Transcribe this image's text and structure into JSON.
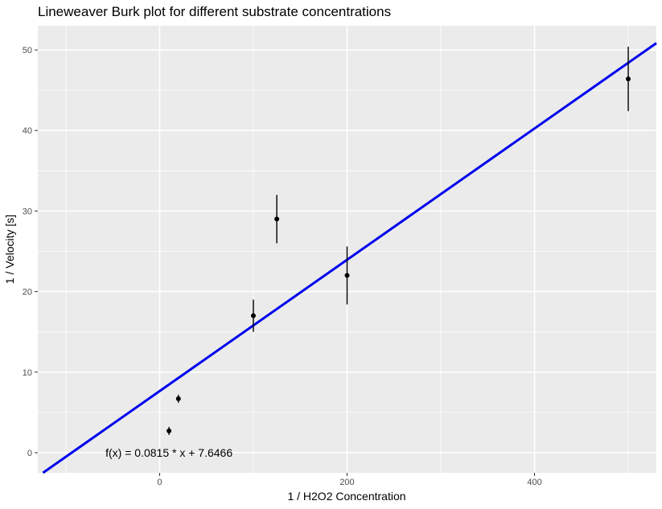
{
  "chart_data": {
    "type": "scatter",
    "title": "Lineweaver Burk plot for different substrate concentrations",
    "xlabel": "1 / H2O2 Concentration",
    "ylabel": "1 / Velocity [s]",
    "xlim": [
      -130,
      530
    ],
    "ylim": [
      -2.5,
      53
    ],
    "x_ticks": [
      0,
      200,
      400
    ],
    "x_minor_ticks": [
      -100,
      100,
      300,
      500
    ],
    "y_ticks": [
      0,
      10,
      20,
      30,
      40,
      50
    ],
    "y_minor_ticks": [
      5,
      15,
      25,
      35,
      45
    ],
    "grid": true,
    "points": [
      {
        "x": 10,
        "y": 2.7,
        "ymin": 2.2,
        "ymax": 3.2
      },
      {
        "x": 20,
        "y": 6.7,
        "ymin": 6.2,
        "ymax": 7.2
      },
      {
        "x": 100,
        "y": 17.0,
        "ymin": 15.0,
        "ymax": 19.0
      },
      {
        "x": 125,
        "y": 29.0,
        "ymin": 26.0,
        "ymax": 32.0
      },
      {
        "x": 200,
        "y": 22.0,
        "ymin": 18.4,
        "ymax": 25.6
      },
      {
        "x": 500,
        "y": 46.4,
        "ymin": 42.4,
        "ymax": 50.4
      }
    ],
    "fit_line": {
      "slope": 0.0815,
      "intercept": 7.6466,
      "color": "#0000ee"
    },
    "annotation": {
      "text": "f(x) = 0.0815 * x + 7.6466",
      "x": 10,
      "y": 0
    },
    "colors": {
      "panel": "#ebebeb",
      "grid": "#ffffff",
      "points": "#000000"
    }
  }
}
